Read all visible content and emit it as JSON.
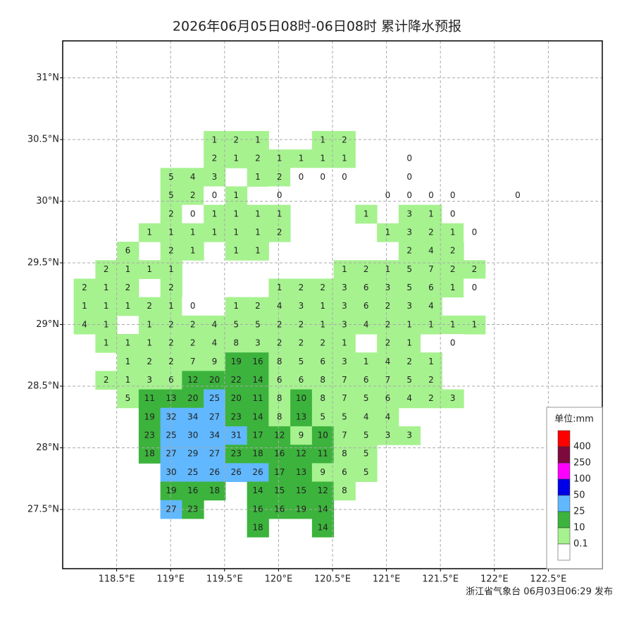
{
  "chart_data": {
    "type": "station-map",
    "title": "2026年06月05日08时-06日08时 累计降水预报",
    "footer": "浙江省气象台 06月03日06:29 发布",
    "xlim": [
      118.0,
      123.0
    ],
    "ylim": [
      27.02,
      31.3
    ],
    "xticks": [
      {
        "value": 118.5,
        "label": "118.5°E"
      },
      {
        "value": 119,
        "label": "119°E"
      },
      {
        "value": 119.5,
        "label": "119.5°E"
      },
      {
        "value": 120,
        "label": "120°E"
      },
      {
        "value": 120.5,
        "label": "120.5°E"
      },
      {
        "value": 121,
        "label": "121°E"
      },
      {
        "value": 121.5,
        "label": "121.5°E"
      },
      {
        "value": 122,
        "label": "122°E"
      },
      {
        "value": 122.5,
        "label": "122.5°E"
      }
    ],
    "yticks": [
      {
        "value": 27.5,
        "label": "27.5°N"
      },
      {
        "value": 28,
        "label": "28°N"
      },
      {
        "value": 28.5,
        "label": "28.5°N"
      },
      {
        "value": 29,
        "label": "29°N"
      },
      {
        "value": 29.5,
        "label": "29.5°N"
      },
      {
        "value": 30,
        "label": "30°N"
      },
      {
        "value": 30.5,
        "label": "30.5°N"
      },
      {
        "value": 31,
        "label": "31°N"
      }
    ],
    "grid": true,
    "legend": {
      "title": "单位:mm",
      "base_color": "#ffffff",
      "levels": [
        {
          "value": 400,
          "color": "#ff0000"
        },
        {
          "value": 250,
          "color": "#7d0a3c"
        },
        {
          "value": 100,
          "color": "#ff00ff"
        },
        {
          "value": 50,
          "color": "#0000e6"
        },
        {
          "value": 25,
          "color": "#61b8ff"
        },
        {
          "value": 10,
          "color": "#3cb33c"
        },
        {
          "value": 0.1,
          "color": "#a6f28f"
        }
      ]
    },
    "stations": [
      [
        null,
        null,
        null,
        null,
        null,
        null,
        1,
        2,
        1,
        null,
        null,
        1,
        2,
        null,
        null,
        null,
        null,
        null,
        null,
        null,
        null
      ],
      [
        null,
        null,
        null,
        null,
        null,
        null,
        2,
        1,
        2,
        1,
        1,
        1,
        1,
        null,
        null,
        0,
        null,
        null,
        null,
        null,
        null
      ],
      [
        null,
        null,
        null,
        null,
        5,
        4,
        3,
        null,
        1,
        2,
        0,
        0,
        0,
        null,
        null,
        0,
        null,
        null,
        null,
        null,
        null
      ],
      [
        null,
        null,
        null,
        null,
        5,
        2,
        0,
        1,
        null,
        0,
        null,
        null,
        null,
        null,
        0,
        0,
        0,
        0,
        null,
        null,
        0
      ],
      [
        null,
        null,
        null,
        null,
        2,
        0,
        1,
        1,
        1,
        1,
        null,
        null,
        null,
        1,
        null,
        3,
        1,
        0,
        null,
        null,
        null
      ],
      [
        null,
        null,
        null,
        1,
        1,
        1,
        1,
        1,
        1,
        2,
        null,
        null,
        null,
        null,
        1,
        3,
        2,
        1,
        0,
        null,
        null
      ],
      [
        null,
        null,
        6,
        null,
        2,
        1,
        null,
        1,
        1,
        null,
        null,
        null,
        null,
        null,
        null,
        2,
        4,
        2,
        null,
        null,
        null
      ],
      [
        null,
        2,
        1,
        1,
        1,
        null,
        null,
        null,
        null,
        null,
        null,
        null,
        1,
        2,
        1,
        5,
        7,
        2,
        2,
        null,
        null
      ],
      [
        2,
        1,
        2,
        null,
        2,
        null,
        null,
        null,
        null,
        1,
        2,
        2,
        3,
        6,
        3,
        5,
        6,
        1,
        0,
        null,
        null
      ],
      [
        1,
        1,
        1,
        2,
        1,
        0,
        null,
        1,
        2,
        4,
        3,
        1,
        3,
        6,
        2,
        3,
        4,
        null,
        null,
        null,
        null
      ],
      [
        4,
        1,
        null,
        1,
        2,
        2,
        4,
        5,
        5,
        2,
        2,
        1,
        3,
        4,
        2,
        1,
        1,
        1,
        1,
        null,
        null
      ],
      [
        null,
        1,
        1,
        1,
        2,
        2,
        4,
        8,
        3,
        2,
        2,
        2,
        1,
        null,
        2,
        1,
        null,
        0,
        null,
        null,
        null
      ],
      [
        null,
        null,
        1,
        2,
        2,
        7,
        9,
        19,
        16,
        8,
        5,
        6,
        3,
        1,
        4,
        2,
        1,
        null,
        null,
        null,
        null
      ],
      [
        null,
        2,
        1,
        3,
        6,
        12,
        20,
        22,
        14,
        6,
        6,
        8,
        7,
        6,
        7,
        5,
        2,
        null,
        null,
        null,
        null
      ],
      [
        null,
        null,
        5,
        11,
        13,
        20,
        25,
        20,
        11,
        8,
        10,
        8,
        7,
        5,
        6,
        4,
        2,
        3,
        null,
        null,
        null
      ],
      [
        null,
        null,
        null,
        19,
        32,
        34,
        27,
        23,
        14,
        8,
        13,
        5,
        5,
        4,
        4,
        null,
        null,
        null,
        null,
        null,
        null
      ],
      [
        null,
        null,
        null,
        23,
        25,
        30,
        34,
        31,
        17,
        12,
        9,
        10,
        7,
        5,
        3,
        3,
        null,
        null,
        null,
        null,
        null
      ],
      [
        null,
        null,
        null,
        18,
        27,
        29,
        27,
        23,
        18,
        16,
        12,
        11,
        8,
        5,
        null,
        null,
        null,
        null,
        null,
        null,
        null
      ],
      [
        null,
        null,
        null,
        null,
        30,
        25,
        26,
        26,
        26,
        17,
        13,
        9,
        6,
        5,
        null,
        null,
        null,
        null,
        null,
        null,
        null
      ],
      [
        null,
        null,
        null,
        null,
        19,
        16,
        18,
        null,
        14,
        15,
        15,
        12,
        8,
        null,
        null,
        null,
        null,
        null,
        null,
        null,
        null
      ],
      [
        null,
        null,
        null,
        null,
        27,
        23,
        null,
        null,
        16,
        16,
        19,
        14,
        null,
        null,
        null,
        null,
        null,
        null,
        null,
        null,
        null
      ],
      [
        null,
        null,
        null,
        null,
        null,
        null,
        null,
        null,
        18,
        null,
        null,
        14,
        null,
        null,
        null,
        null,
        null,
        null,
        null,
        null,
        null
      ]
    ]
  }
}
